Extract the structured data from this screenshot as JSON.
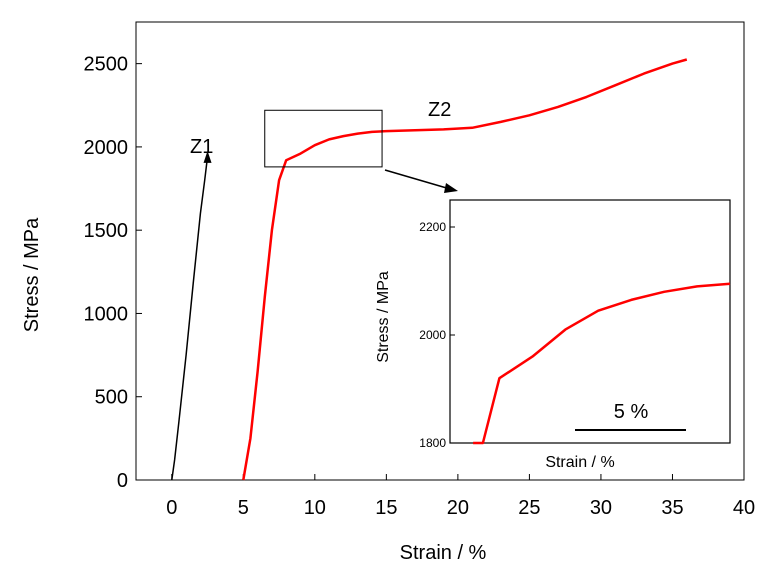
{
  "chart_data": {
    "type": "line",
    "xlabel": "Strain / %",
    "ylabel": "Stress / MPa",
    "xlim": [
      -2.5,
      40
    ],
    "ylim": [
      0,
      2750
    ],
    "xticks": [
      0,
      5,
      10,
      15,
      20,
      25,
      30,
      35,
      40
    ],
    "yticks": [
      0,
      500,
      1000,
      1500,
      2000,
      2500
    ],
    "grid": false,
    "series": [
      {
        "name": "Z1",
        "color": "#000000",
        "x": [
          0,
          0.2,
          0.5,
          1.0,
          1.5,
          2.0,
          2.3,
          2.5
        ],
        "y": [
          0,
          120,
          350,
          750,
          1180,
          1600,
          1800,
          1940
        ]
      },
      {
        "name": "Z2",
        "color": "#ff0000",
        "x": [
          5,
          5.5,
          6,
          6.5,
          7,
          7.5,
          8,
          9,
          10,
          11,
          12,
          13,
          14,
          15,
          17,
          19,
          21,
          23,
          25,
          27,
          29,
          31,
          33,
          35,
          36
        ],
        "y": [
          0,
          250,
          650,
          1100,
          1500,
          1800,
          1920,
          1960,
          2010,
          2045,
          2065,
          2080,
          2090,
          2095,
          2100,
          2105,
          2115,
          2150,
          2190,
          2240,
          2300,
          2370,
          2440,
          2500,
          2525
        ]
      }
    ],
    "annotations": {
      "zoom_box": {
        "x": [
          6.5,
          14.7
        ],
        "y": [
          1880,
          2220
        ]
      },
      "inset": {
        "xlabel": "Strain / %",
        "ylabel": "Stress / MPa",
        "ylim": [
          1800,
          2250
        ],
        "yticks": [
          1800,
          2000,
          2200
        ],
        "scale_bar_label": "5 %"
      }
    }
  }
}
